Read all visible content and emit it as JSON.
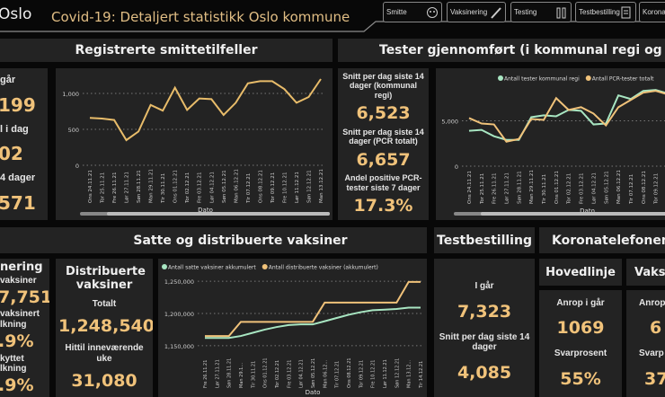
{
  "header": {
    "city": "Oslo",
    "title": "Covid-19: Detaljert statistikk Oslo kommune"
  },
  "nav": [
    {
      "label": "Smitte",
      "icon": "virus-face-icon"
    },
    {
      "label": "Vaksinering",
      "icon": "syringe-icon"
    },
    {
      "label": "Testing",
      "icon": "test-tubes-icon"
    },
    {
      "label": "Testbestilling",
      "icon": "form-click-icon"
    },
    {
      "label": "Koronat",
      "icon": ""
    }
  ],
  "cases": {
    "title": "Registrerte smittetilfeller",
    "kpis": [
      {
        "label": "går",
        "value": "199"
      },
      {
        "label": "l i dag",
        "value": "02"
      },
      {
        "label": "4 dager",
        "value": "571"
      }
    ]
  },
  "tests": {
    "title": "Tester gjennomført (i kommunal regi og PCR totalt)",
    "kpis": [
      {
        "label": "Snitt per dag siste 14 dager (kommunal regi)",
        "value": "6,523"
      },
      {
        "label": "Snitt per dag siste 14 dager (PCR totalt)",
        "value": "6,657"
      },
      {
        "label": "Andel positive PCR-tester siste 7 dager",
        "value": "17.3%"
      }
    ]
  },
  "vacc": {
    "title": "Satte og distribuerte vaksiner",
    "left": {
      "title": "nering",
      "l1": "vaksiner",
      "v1": "7,751",
      "l2": "vaksinert\nlkning",
      "v2": ".9%",
      "l3": "kyttet\nlkning",
      "v3": ".9%"
    },
    "dist": {
      "title": "Distribuerte vaksiner",
      "l1": "Totalt",
      "v1": "1,248,540",
      "l2": "Hittil inneværende uke",
      "v2": "31,080"
    }
  },
  "testbestilling": {
    "title": "Testbestilling",
    "l1": "I går",
    "v1": "7,323",
    "l2": "Snitt per dag siste 14 dager",
    "v2": "4,085"
  },
  "phone": {
    "title": "Koronatelefonen",
    "main": {
      "title": "Hovedlinje",
      "l1": "Anrop i går",
      "v1": "1069",
      "l2": "Svarprosent",
      "v2": "55%"
    },
    "vax": {
      "title": "Vaksi",
      "l1": "Anrop",
      "v1": "6",
      "l2": "Svarp",
      "v2": "37"
    }
  },
  "chart_data": [
    {
      "type": "line",
      "xlabel": "Dato",
      "ylabel": "",
      "ylim": [
        0,
        1250
      ],
      "yticks": [
        "0",
        "500",
        "1,000"
      ],
      "grid": true,
      "categories": [
        "Ons 24.11.21",
        "Tor 25.11.21",
        "Fre 26.11.21",
        "Lør 27.11.21",
        "Søn 28.11.21",
        "Man 29.11.21",
        "Tir 30.11.21",
        "Ons 01.12.21",
        "Tor 02.12.21",
        "Fre 03.12.21",
        "Lør 04.12.21",
        "Søn 05.12.21",
        "Man 06.12.21",
        "Tir 07.12.21",
        "Ons 08.12.21",
        "Tor 09.12.21",
        "Fre 10.12.21",
        "Lør 11.12.21",
        "Søn 12.12.21",
        "Man 13.12.21"
      ],
      "series": [
        {
          "values": [
            660,
            650,
            630,
            350,
            470,
            840,
            760,
            1080,
            770,
            930,
            920,
            700,
            870,
            1140,
            1170,
            1170,
            1060,
            870,
            950,
            1200
          ],
          "color": "#e8bc6a"
        }
      ]
    },
    {
      "type": "line",
      "xlabel": "Dato",
      "ylim": [
        0,
        10000
      ],
      "yticks": [
        "0",
        "5,000"
      ],
      "grid": true,
      "legend": "top",
      "categories": [
        "Ons 24.11.21",
        "Tor 25.11.21",
        "Fre 26.11.21",
        "Lør 27.11.21",
        "Søn 28.11.21",
        "Man 29.11.21",
        "Tir 30.11.21",
        "Ons 01.12.21",
        "Tor 02.12.21",
        "Fre 03.12.21",
        "Lør 04.12.21",
        "Søn 05.12.21",
        "Man 06.12.21",
        "Tir 07.12.21",
        "Ons 08.12.21",
        "Tor 09.12.21",
        "Fre 10.12.21",
        "Lør 11.12.21",
        "Søn 12.12.21",
        "Man 13.12.21"
      ],
      "series": [
        {
          "name": "Antall tester kommunal regi",
          "color": "#a8e6c2",
          "values": [
            3900,
            4000,
            3300,
            2900,
            2900,
            5400,
            5600,
            5500,
            6200,
            6100,
            4600,
            4700,
            7800,
            7400,
            8300,
            8400,
            8000,
            7100,
            7700,
            7500
          ]
        },
        {
          "name": "Antall PCR-tester totalt",
          "color": "#f0c27a",
          "values": [
            5300,
            4700,
            4600,
            2700,
            3000,
            5200,
            5100,
            7500,
            6200,
            6500,
            5800,
            4500,
            6500,
            7300,
            8100,
            8300,
            7900,
            7400,
            8000,
            7800
          ]
        }
      ]
    },
    {
      "type": "line",
      "xlabel": "Dato",
      "ylim": [
        1140000,
        1260000
      ],
      "yticks": [
        "1,150,000",
        "1,200,000",
        "1,250,000"
      ],
      "grid": true,
      "legend": "top",
      "categories": [
        "Fre 26.11.21",
        "Lør 27.11.21",
        "Søn 28.11.21",
        "Man 29.1...",
        "Tir 30.11.21",
        "Ons 01.12.21",
        "Tor 02.12.21",
        "Fre 03.12.21",
        "Lør 04.12.21",
        "Søn 05.12.21",
        "Man 06.12...",
        "Tir 07.12.21",
        "Ons 08.12.21",
        "Tor 09.12.21",
        "Fre 10.12.21",
        "Lør 11.12.21",
        "Søn 12.12.21",
        "Man 13.12...",
        "Tir 14.12.21"
      ],
      "series": [
        {
          "name": "Antall satte vaksiner akkumulert",
          "color": "#a8e6c2",
          "values": [
            1162000,
            1162000,
            1162000,
            1165000,
            1170000,
            1175000,
            1179000,
            1182000,
            1183000,
            1183000,
            1188000,
            1193000,
            1198000,
            1202000,
            1205000,
            1206000,
            1207000,
            1209000,
            1209000
          ]
        },
        {
          "name": "Antall distribuerte vaksiner (akkumulert)",
          "color": "#f0c27a",
          "values": [
            1165000,
            1165000,
            1165000,
            1187000,
            1187000,
            1187000,
            1187000,
            1187000,
            1187000,
            1187000,
            1217000,
            1217000,
            1217000,
            1217000,
            1217000,
            1217000,
            1217000,
            1249000,
            1249000
          ]
        }
      ]
    }
  ]
}
